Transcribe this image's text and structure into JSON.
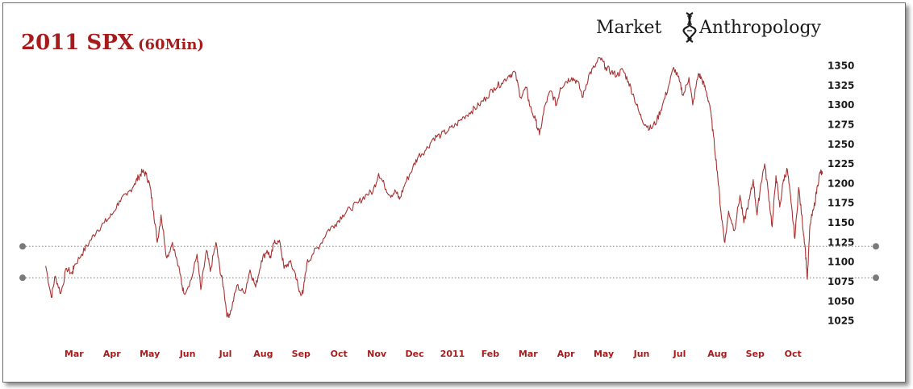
{
  "chart_data": {
    "type": "line",
    "title": "2011 SPX",
    "subtitle": "(60Min)",
    "brand": {
      "left": "Market",
      "right": "Anthropology",
      "icon": "dna-helix-icon"
    },
    "ylim": [
      1000,
      1370
    ],
    "y_ticks": [
      1025,
      1050,
      1075,
      1100,
      1125,
      1150,
      1175,
      1200,
      1225,
      1250,
      1275,
      1300,
      1325,
      1350
    ],
    "x_ticks": [
      {
        "label": "Mar",
        "x": 0
      },
      {
        "label": "Apr",
        "x": 1
      },
      {
        "label": "May",
        "x": 2
      },
      {
        "label": "Jun",
        "x": 3
      },
      {
        "label": "Jul",
        "x": 4
      },
      {
        "label": "Aug",
        "x": 5
      },
      {
        "label": "Sep",
        "x": 6
      },
      {
        "label": "Oct",
        "x": 7
      },
      {
        "label": "Nov",
        "x": 8
      },
      {
        "label": "Dec",
        "x": 9
      },
      {
        "label": "2011",
        "x": 10
      },
      {
        "label": "Feb",
        "x": 11
      },
      {
        "label": "Mar",
        "x": 12
      },
      {
        "label": "Apr",
        "x": 13
      },
      {
        "label": "May",
        "x": 14
      },
      {
        "label": "Jun",
        "x": 15
      },
      {
        "label": "Jul",
        "x": 16
      },
      {
        "label": "Aug",
        "x": 17
      },
      {
        "label": "Sep",
        "x": 18
      },
      {
        "label": "Oct",
        "x": 19
      }
    ],
    "xlim": [
      -0.7,
      19.55
    ],
    "series": [
      {
        "color": "#a83232",
        "points": [
          [
            -0.75,
            1095
          ],
          [
            -0.6,
            1055
          ],
          [
            -0.5,
            1082
          ],
          [
            -0.35,
            1060
          ],
          [
            -0.2,
            1092
          ],
          [
            -0.05,
            1085
          ],
          [
            0.0,
            1095
          ],
          [
            0.2,
            1110
          ],
          [
            0.4,
            1125
          ],
          [
            0.6,
            1140
          ],
          [
            0.8,
            1150
          ],
          [
            1.0,
            1160
          ],
          [
            1.2,
            1178
          ],
          [
            1.4,
            1185
          ],
          [
            1.6,
            1200
          ],
          [
            1.7,
            1208
          ],
          [
            1.8,
            1215
          ],
          [
            1.9,
            1212
          ],
          [
            2.0,
            1198
          ],
          [
            2.1,
            1165
          ],
          [
            2.2,
            1125
          ],
          [
            2.3,
            1160
          ],
          [
            2.45,
            1105
          ],
          [
            2.6,
            1125
          ],
          [
            2.8,
            1085
          ],
          [
            2.9,
            1060
          ],
          [
            3.1,
            1078
          ],
          [
            3.25,
            1110
          ],
          [
            3.35,
            1065
          ],
          [
            3.5,
            1115
          ],
          [
            3.6,
            1088
          ],
          [
            3.75,
            1125
          ],
          [
            3.85,
            1092
          ],
          [
            3.95,
            1068
          ],
          [
            4.05,
            1030
          ],
          [
            4.15,
            1038
          ],
          [
            4.3,
            1070
          ],
          [
            4.5,
            1060
          ],
          [
            4.65,
            1090
          ],
          [
            4.8,
            1068
          ],
          [
            4.95,
            1102
          ],
          [
            5.1,
            1115
          ],
          [
            5.2,
            1105
          ],
          [
            5.3,
            1128
          ],
          [
            5.45,
            1123
          ],
          [
            5.55,
            1092
          ],
          [
            5.7,
            1100
          ],
          [
            5.85,
            1085
          ],
          [
            5.95,
            1062
          ],
          [
            6.05,
            1060
          ],
          [
            6.15,
            1098
          ],
          [
            6.3,
            1110
          ],
          [
            6.5,
            1122
          ],
          [
            6.7,
            1140
          ],
          [
            6.9,
            1148
          ],
          [
            7.1,
            1160
          ],
          [
            7.3,
            1168
          ],
          [
            7.5,
            1175
          ],
          [
            7.7,
            1185
          ],
          [
            7.9,
            1190
          ],
          [
            8.05,
            1213
          ],
          [
            8.2,
            1198
          ],
          [
            8.35,
            1185
          ],
          [
            8.5,
            1190
          ],
          [
            8.6,
            1180
          ],
          [
            8.75,
            1200
          ],
          [
            8.95,
            1220
          ],
          [
            9.1,
            1235
          ],
          [
            9.3,
            1243
          ],
          [
            9.5,
            1258
          ],
          [
            9.7,
            1262
          ],
          [
            9.9,
            1268
          ],
          [
            10.1,
            1275
          ],
          [
            10.3,
            1285
          ],
          [
            10.5,
            1292
          ],
          [
            10.7,
            1300
          ],
          [
            10.9,
            1310
          ],
          [
            11.1,
            1322
          ],
          [
            11.3,
            1328
          ],
          [
            11.5,
            1338
          ],
          [
            11.65,
            1342
          ],
          [
            11.8,
            1310
          ],
          [
            11.95,
            1322
          ],
          [
            12.05,
            1298
          ],
          [
            12.2,
            1280
          ],
          [
            12.3,
            1262
          ],
          [
            12.45,
            1300
          ],
          [
            12.6,
            1318
          ],
          [
            12.75,
            1300
          ],
          [
            12.85,
            1322
          ],
          [
            13.0,
            1330
          ],
          [
            13.15,
            1335
          ],
          [
            13.3,
            1330
          ],
          [
            13.45,
            1310
          ],
          [
            13.6,
            1338
          ],
          [
            13.75,
            1348
          ],
          [
            13.9,
            1360
          ],
          [
            14.05,
            1348
          ],
          [
            14.2,
            1342
          ],
          [
            14.35,
            1338
          ],
          [
            14.5,
            1345
          ],
          [
            14.65,
            1330
          ],
          [
            14.8,
            1310
          ],
          [
            14.95,
            1288
          ],
          [
            15.1,
            1275
          ],
          [
            15.25,
            1270
          ],
          [
            15.4,
            1280
          ],
          [
            15.55,
            1300
          ],
          [
            15.7,
            1322
          ],
          [
            15.85,
            1348
          ],
          [
            16.0,
            1330
          ],
          [
            16.1,
            1312
          ],
          [
            16.25,
            1335
          ],
          [
            16.35,
            1300
          ],
          [
            16.5,
            1340
          ],
          [
            16.6,
            1332
          ],
          [
            16.7,
            1318
          ],
          [
            16.8,
            1300
          ],
          [
            16.9,
            1260
          ],
          [
            17.0,
            1215
          ],
          [
            17.1,
            1162
          ],
          [
            17.2,
            1125
          ],
          [
            17.3,
            1165
          ],
          [
            17.45,
            1140
          ],
          [
            17.6,
            1185
          ],
          [
            17.7,
            1150
          ],
          [
            17.85,
            1180
          ],
          [
            17.95,
            1205
          ],
          [
            18.05,
            1160
          ],
          [
            18.15,
            1200
          ],
          [
            18.25,
            1225
          ],
          [
            18.35,
            1188
          ],
          [
            18.45,
            1145
          ],
          [
            18.55,
            1210
          ],
          [
            18.65,
            1170
          ],
          [
            18.75,
            1205
          ],
          [
            18.85,
            1218
          ],
          [
            18.95,
            1175
          ],
          [
            19.05,
            1130
          ],
          [
            19.15,
            1195
          ],
          [
            19.25,
            1150
          ],
          [
            19.32,
            1120
          ],
          [
            19.38,
            1078
          ],
          [
            19.45,
            1148
          ],
          [
            19.55,
            1168
          ],
          [
            19.65,
            1198
          ],
          [
            19.72,
            1215
          ],
          [
            19.78,
            1212
          ]
        ]
      }
    ],
    "reference_lines": [
      {
        "y": 1120,
        "style": "dotted",
        "color": "#808080"
      },
      {
        "y": 1080,
        "style": "dotted",
        "color": "#808080"
      }
    ],
    "grid": false
  }
}
